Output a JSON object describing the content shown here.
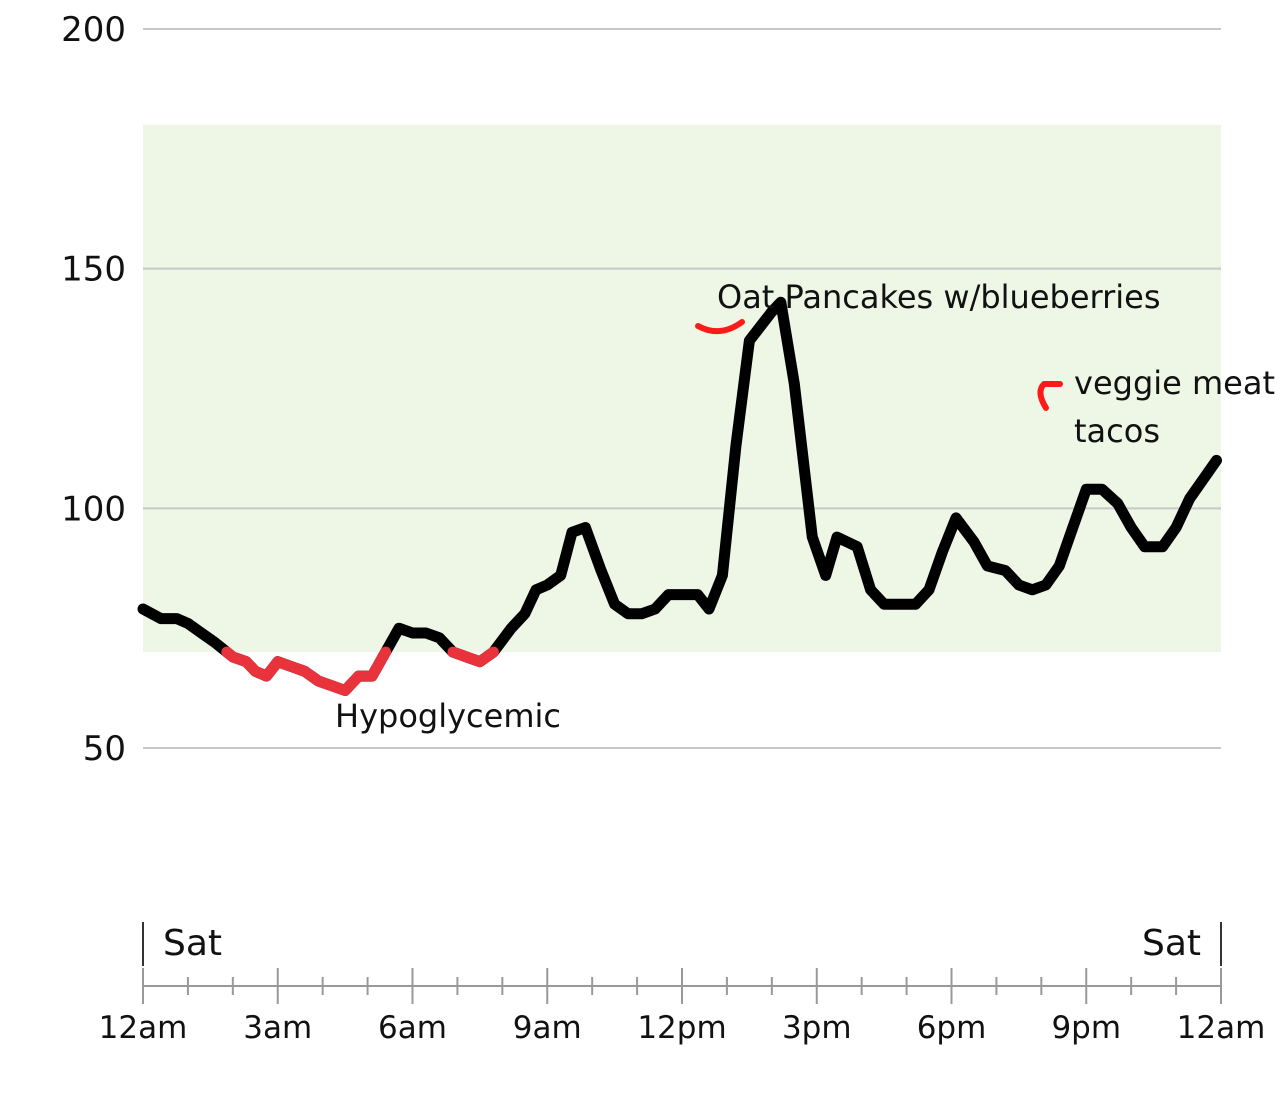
{
  "chart_data": {
    "type": "line",
    "title": "",
    "xlabel": "",
    "ylabel": "",
    "ylim": [
      50,
      200
    ],
    "yticks": [
      50,
      100,
      150,
      200
    ],
    "target_range": [
      70,
      180
    ],
    "low_threshold": 70,
    "xlim": [
      0,
      24
    ],
    "x_tick_labels": [
      {
        "x": 0,
        "label": "12am"
      },
      {
        "x": 3,
        "label": "3am"
      },
      {
        "x": 6,
        "label": "6am"
      },
      {
        "x": 9,
        "label": "9am"
      },
      {
        "x": 12,
        "label": "12pm"
      },
      {
        "x": 15,
        "label": "3pm"
      },
      {
        "x": 18,
        "label": "6pm"
      },
      {
        "x": 21,
        "label": "9pm"
      },
      {
        "x": 24,
        "label": "12am"
      }
    ],
    "day_labels": [
      {
        "x": 0,
        "label": "Sat",
        "side": "start"
      },
      {
        "x": 24,
        "label": "Sat",
        "side": "end"
      }
    ],
    "colors": {
      "line": "#000000",
      "low": "#e8323c",
      "range_fill": "#eef6e6",
      "annotation_mark": "#ff1a1a"
    },
    "series": [
      {
        "values": [
          [
            0.0,
            79
          ],
          [
            0.4,
            77
          ],
          [
            0.75,
            77
          ],
          [
            1.0,
            76
          ],
          [
            1.3,
            74
          ],
          [
            1.6,
            72
          ],
          [
            2.0,
            69
          ],
          [
            2.3,
            68
          ],
          [
            2.5,
            66
          ],
          [
            2.75,
            65
          ],
          [
            3.0,
            68
          ],
          [
            3.3,
            67
          ],
          [
            3.6,
            66
          ],
          [
            3.9,
            64
          ],
          [
            4.2,
            63
          ],
          [
            4.5,
            62
          ],
          [
            4.8,
            65
          ],
          [
            5.1,
            65
          ],
          [
            5.4,
            70
          ],
          [
            5.7,
            75
          ],
          [
            6.0,
            74
          ],
          [
            6.3,
            74
          ],
          [
            6.6,
            73
          ],
          [
            6.9,
            70
          ],
          [
            7.2,
            69
          ],
          [
            7.5,
            68
          ],
          [
            7.8,
            70
          ],
          [
            8.2,
            75
          ],
          [
            8.5,
            78
          ],
          [
            8.75,
            83
          ],
          [
            9.0,
            84
          ],
          [
            9.3,
            86
          ],
          [
            9.55,
            95
          ],
          [
            9.85,
            96
          ],
          [
            10.2,
            87
          ],
          [
            10.5,
            80
          ],
          [
            10.8,
            78
          ],
          [
            11.1,
            78
          ],
          [
            11.4,
            79
          ],
          [
            11.7,
            82
          ],
          [
            12.0,
            82
          ],
          [
            12.35,
            82
          ],
          [
            12.6,
            79
          ],
          [
            12.9,
            86
          ],
          [
            13.2,
            113
          ],
          [
            13.5,
            135
          ],
          [
            14.0,
            141
          ],
          [
            14.2,
            143
          ],
          [
            14.5,
            126
          ],
          [
            14.9,
            94
          ],
          [
            15.2,
            86
          ],
          [
            15.45,
            94
          ],
          [
            15.9,
            92
          ],
          [
            16.2,
            83
          ],
          [
            16.5,
            80
          ],
          [
            16.85,
            80
          ],
          [
            17.2,
            80
          ],
          [
            17.5,
            83
          ],
          [
            17.8,
            91
          ],
          [
            18.1,
            98
          ],
          [
            18.5,
            93
          ],
          [
            18.8,
            88
          ],
          [
            19.2,
            87
          ],
          [
            19.5,
            84
          ],
          [
            19.8,
            83
          ],
          [
            20.1,
            84
          ],
          [
            20.4,
            88
          ],
          [
            20.7,
            96
          ],
          [
            21.0,
            104
          ],
          [
            21.35,
            104
          ],
          [
            21.7,
            101
          ],
          [
            22.0,
            96
          ],
          [
            22.3,
            92
          ],
          [
            22.7,
            92
          ],
          [
            23.0,
            96
          ],
          [
            23.3,
            102
          ],
          [
            23.9,
            110
          ]
        ]
      }
    ],
    "annotations": [
      {
        "text": "Hypoglycemic"
      },
      {
        "text": "Oat Pancakes w/blueberries"
      },
      {
        "text": "veggie meat"
      },
      {
        "text": "tacos"
      }
    ]
  }
}
